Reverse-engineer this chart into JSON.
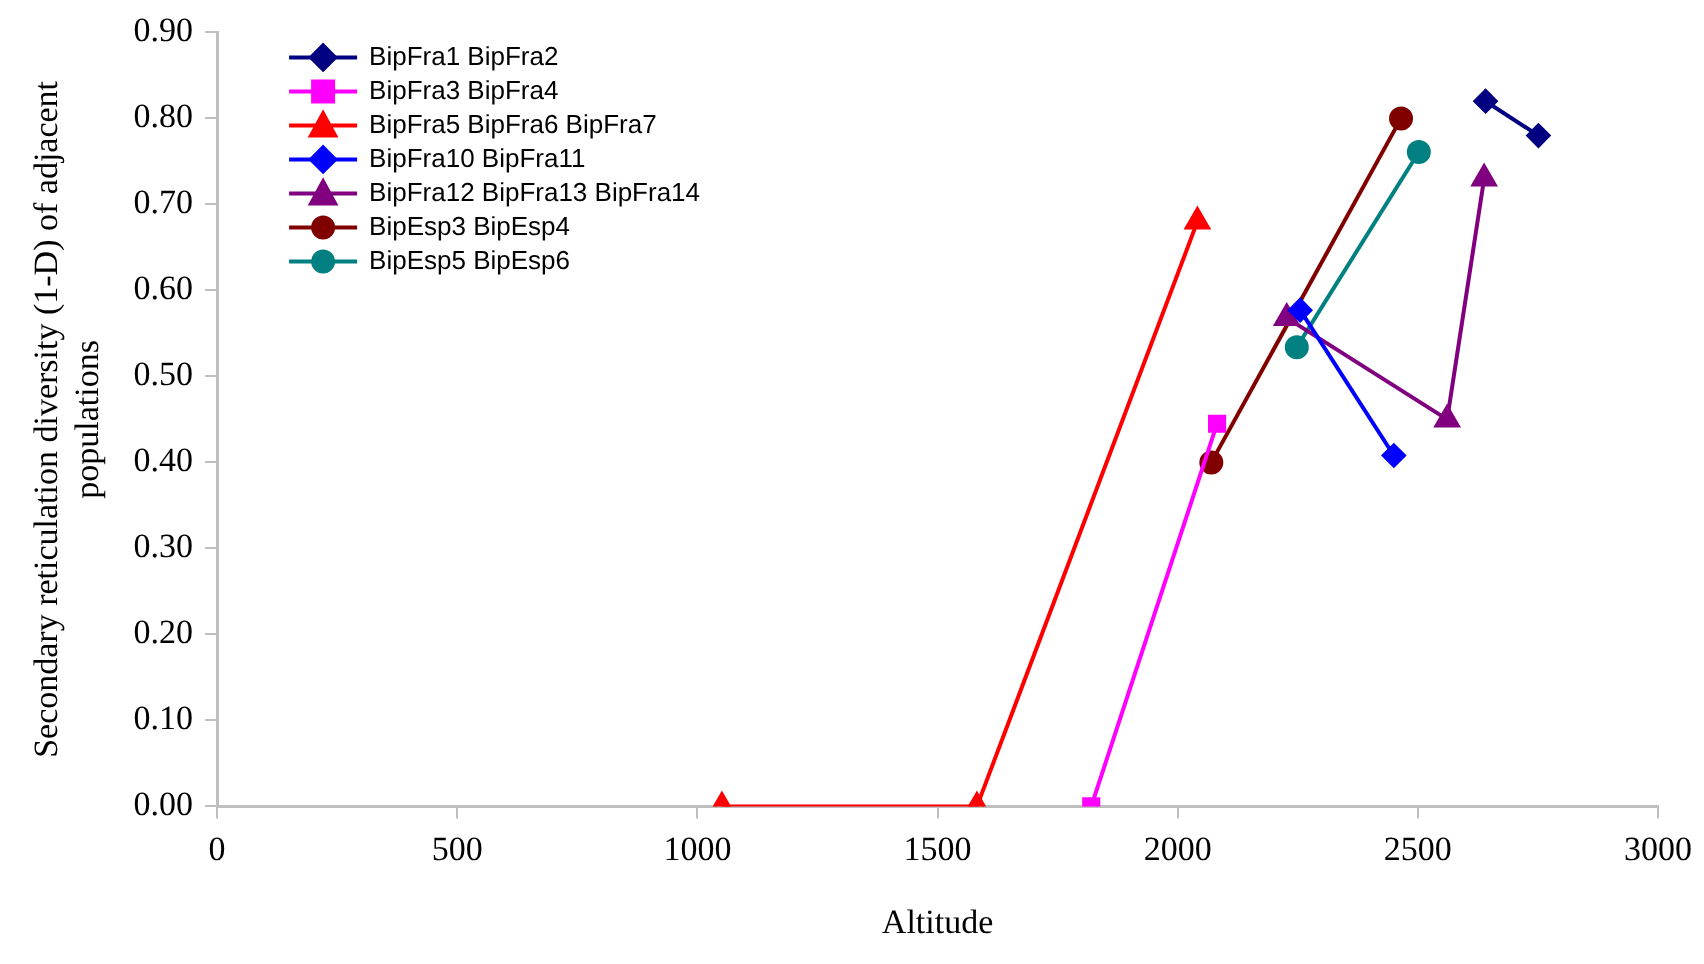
{
  "chart_data": {
    "type": "line",
    "xlabel": "Altitude",
    "ylabel": "Secondary reticulation diversity (1-D) of adjacent populations",
    "xlim": [
      0,
      3000
    ],
    "xticks": [
      0,
      500,
      1000,
      1500,
      2000,
      2500,
      3000
    ],
    "ylim": [
      0,
      0.9
    ],
    "yticks": [
      {
        "value": 0,
        "label": "0.00"
      },
      {
        "value": 0.1,
        "label": "0.10"
      },
      {
        "value": 0.2,
        "label": "0.20"
      },
      {
        "value": 0.3,
        "label": "0.30"
      },
      {
        "value": 0.4,
        "label": "0.40"
      },
      {
        "value": 0.5,
        "label": "0.50"
      },
      {
        "value": 0.6,
        "label": "0.60"
      },
      {
        "value": 0.7,
        "label": "0.70"
      },
      {
        "value": 0.8,
        "label": "0.80"
      },
      {
        "value": 0.9,
        "label": "0.90"
      }
    ],
    "grid": false,
    "legend": "top left",
    "line_style": "solid",
    "series": [
      {
        "name": "BipFra1 BipFra2",
        "color": "#000080",
        "marker": "diamond",
        "x": [
          2641,
          2751
        ],
        "values": [
          0.82,
          0.78
        ]
      },
      {
        "name": "BipFra3 BipFra4",
        "color": "#ff00ff",
        "marker": "square",
        "x": [
          1820,
          2082
        ],
        "values": [
          0,
          0.445
        ]
      },
      {
        "name": "BipFra5 BipFra6 BipFra7",
        "color": "#ff0000",
        "marker": "triangle",
        "x": [
          1051,
          1582,
          2041
        ],
        "values": [
          0,
          0,
          0.68
        ]
      },
      {
        "name": "BipFra10 BipFra11",
        "color": "#0000ff",
        "marker": "diamond",
        "x": [
          2255,
          2450
        ],
        "values": [
          0.577,
          0.408
        ]
      },
      {
        "name": "BipFra12 BipFra13 BipFra14",
        "color": "#800080",
        "marker": "triangle",
        "x": [
          2227,
          2561,
          2638
        ],
        "values": [
          0.568,
          0.45,
          0.73
        ]
      },
      {
        "name": "BipEsp3 BipEsp4",
        "color": "#800000",
        "marker": "circle",
        "x": [
          2070,
          2465
        ],
        "values": [
          0.4,
          0.8
        ]
      },
      {
        "name": "BipEsp5 BipEsp6",
        "color": "#008080",
        "marker": "circle",
        "x": [
          2248,
          2502
        ],
        "values": [
          0.534,
          0.761
        ]
      }
    ]
  }
}
